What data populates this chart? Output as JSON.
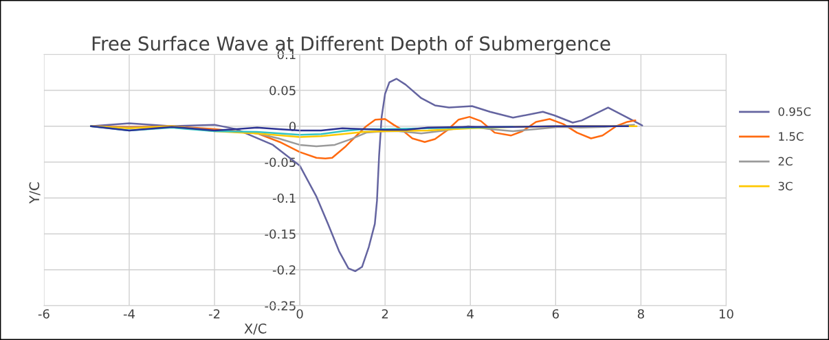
{
  "chart_data": {
    "type": "line",
    "title": "Free Surface Wave at Different Depth of Submergence",
    "xlabel": "X/C",
    "ylabel": "Y/C",
    "xlim": [
      -6,
      10
    ],
    "xticks": [
      -6,
      -4,
      -2,
      0,
      2,
      4,
      6,
      8,
      10
    ],
    "ylim": [
      -0.25,
      0.1
    ],
    "yticks": [
      -0.25,
      -0.2,
      -0.15,
      -0.1,
      -0.05,
      0,
      0.05,
      0.1
    ],
    "grid": true,
    "legend": "right",
    "marker": "none",
    "line_style": "solid",
    "series": [
      {
        "name": "0.95C",
        "color": "#6464a0",
        "x": [
          -4.9,
          -4,
          -3,
          -2,
          -1.5,
          -0.63,
          0,
          0.39,
          0.66,
          0.92,
          1.14,
          1.3,
          1.46,
          1.62,
          1.76,
          1.81,
          1.86,
          1.92,
          2.0,
          2.1,
          2.27,
          2.48,
          2.85,
          3.17,
          3.5,
          4.04,
          4.46,
          5.0,
          5.7,
          5.97,
          6.4,
          6.61,
          7.23,
          7.68,
          8.03
        ],
        "values": [
          0,
          0.004,
          0,
          0.002,
          -0.004,
          -0.026,
          -0.055,
          -0.098,
          -0.136,
          -0.174,
          -0.198,
          -0.202,
          -0.196,
          -0.168,
          -0.136,
          -0.104,
          -0.041,
          0.013,
          0.045,
          0.061,
          0.066,
          0.058,
          0.039,
          0.029,
          0.026,
          0.028,
          0.02,
          0.012,
          0.02,
          0.015,
          0.005,
          0.008,
          0.026,
          0.012,
          0.001
        ]
      },
      {
        "name": "1.5C",
        "color": "#ff6a10",
        "x": [
          -4.9,
          -4,
          -3,
          -2,
          -1.5,
          -1,
          -0.47,
          0,
          0.39,
          0.6,
          0.76,
          1.08,
          1.35,
          1.56,
          1.77,
          2.0,
          2.2,
          2.37,
          2.64,
          2.93,
          3.17,
          3.45,
          3.72,
          3.98,
          4.25,
          4.57,
          4.95,
          5.22,
          5.54,
          5.86,
          6.18,
          6.5,
          6.83,
          7.1,
          7.42,
          7.68,
          7.87
        ],
        "values": [
          0,
          -0.001,
          0,
          -0.004,
          -0.007,
          -0.01,
          -0.022,
          -0.036,
          -0.044,
          -0.045,
          -0.044,
          -0.028,
          -0.012,
          0,
          0.009,
          0.01,
          0.002,
          -0.004,
          -0.017,
          -0.022,
          -0.018,
          -0.006,
          0.009,
          0.013,
          0.007,
          -0.009,
          -0.013,
          -0.007,
          0.006,
          0.01,
          0.003,
          -0.009,
          -0.017,
          -0.013,
          0,
          0.006,
          0.008
        ]
      },
      {
        "name": "2C",
        "color": "#9a9a9a",
        "x": [
          -4.9,
          -4,
          -3,
          -2,
          -1,
          -0.5,
          0,
          0.39,
          0.82,
          1.2,
          1.56,
          2.0,
          2.32,
          2.85,
          3.4,
          3.95,
          4.46,
          5.0,
          5.54,
          6.08,
          6.6,
          7.15,
          7.84
        ],
        "values": [
          0,
          -0.002,
          0,
          -0.006,
          -0.01,
          -0.017,
          -0.026,
          -0.028,
          -0.026,
          -0.018,
          -0.009,
          -0.007,
          -0.007,
          -0.01,
          -0.006,
          0,
          -0.004,
          -0.007,
          -0.004,
          -0.001,
          -0.002,
          -0.001,
          0.002
        ]
      },
      {
        "name": "3C",
        "color": "#ffc800",
        "x": [
          -4.9,
          -4,
          -3,
          -2,
          -1,
          0,
          0.5,
          1,
          1.5,
          2,
          3,
          4,
          5,
          6,
          7,
          7.9
        ],
        "values": [
          0,
          -0.003,
          0,
          -0.007,
          -0.01,
          -0.015,
          -0.014,
          -0.011,
          -0.008,
          -0.007,
          -0.006,
          -0.003,
          -0.001,
          0,
          0,
          0
        ]
      },
      {
        "color": "#33c4c4",
        "x": [
          -4.9,
          -4,
          -3,
          -2,
          -1,
          0,
          0.5,
          1,
          1.5,
          2,
          3,
          4,
          5
        ],
        "values": [
          0,
          -0.006,
          -0.002,
          -0.007,
          -0.008,
          -0.012,
          -0.011,
          -0.007,
          -0.004,
          -0.004,
          -0.003,
          -0.002,
          -0.001
        ]
      },
      {
        "color": "#2b3293",
        "x": [
          -4.9,
          -4,
          -3,
          -2,
          -1.5,
          -1,
          -0.5,
          0,
          0.5,
          1,
          1.5,
          2,
          2.5,
          3,
          4,
          5,
          6,
          7.7
        ],
        "values": [
          0,
          -0.006,
          -0.001,
          -0.006,
          -0.004,
          -0.002,
          -0.004,
          -0.006,
          -0.006,
          -0.003,
          -0.004,
          -0.005,
          -0.005,
          -0.002,
          -0.001,
          -0.001,
          0,
          0
        ]
      }
    ]
  }
}
